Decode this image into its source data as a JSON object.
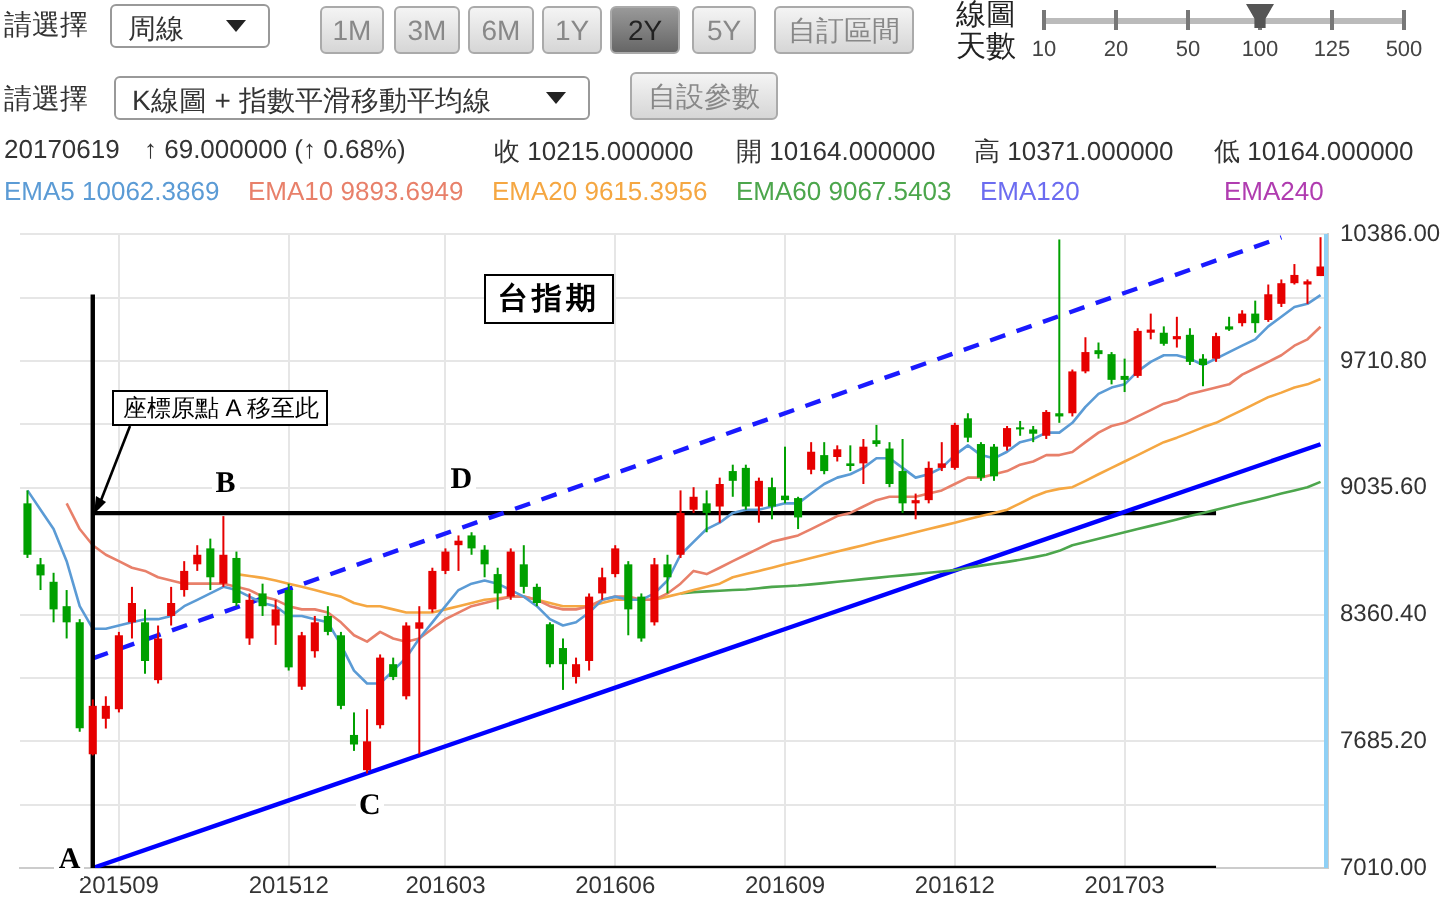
{
  "chart_data": {
    "type": "candlestick",
    "title": "台指期",
    "x": [
      "2015-07-27",
      "2015-08-03",
      "2015-08-10",
      "2015-08-17",
      "2015-08-24",
      "2015-08-31",
      "2015-09-07",
      "2015-09-14",
      "2015-09-21",
      "2015-09-28",
      "2015-10-05",
      "2015-10-12",
      "2015-10-19",
      "2015-10-26",
      "2015-11-02",
      "2015-11-09",
      "2015-11-16",
      "2015-11-23",
      "2015-11-30",
      "2015-12-07",
      "2015-12-14",
      "2015-12-21",
      "2015-12-28",
      "2016-01-04",
      "2016-01-11",
      "2016-01-18",
      "2016-01-25",
      "2016-02-01",
      "2016-02-08",
      "2016-02-15",
      "2016-02-22",
      "2016-02-29",
      "2016-03-07",
      "2016-03-14",
      "2016-03-21",
      "2016-03-28",
      "2016-04-04",
      "2016-04-11",
      "2016-04-18",
      "2016-04-25",
      "2016-05-02",
      "2016-05-09",
      "2016-05-16",
      "2016-05-23",
      "2016-05-30",
      "2016-06-06",
      "2016-06-13",
      "2016-06-20",
      "2016-06-27",
      "2016-07-04",
      "2016-07-11",
      "2016-07-18",
      "2016-07-25",
      "2016-08-01",
      "2016-08-08",
      "2016-08-15",
      "2016-08-22",
      "2016-08-29",
      "2016-09-05",
      "2016-09-12",
      "2016-09-19",
      "2016-09-26",
      "2016-10-03",
      "2016-10-10",
      "2016-10-17",
      "2016-10-24",
      "2016-10-31",
      "2016-11-07",
      "2016-11-14",
      "2016-11-21",
      "2016-11-28",
      "2016-12-05",
      "2016-12-12",
      "2016-12-19",
      "2016-12-26",
      "2017-01-02",
      "2017-01-09",
      "2017-01-16",
      "2017-01-23",
      "2017-01-30",
      "2017-02-06",
      "2017-02-13",
      "2017-02-20",
      "2017-02-27",
      "2017-03-06",
      "2017-03-13",
      "2017-03-20",
      "2017-03-27",
      "2017-04-03",
      "2017-04-10",
      "2017-04-17",
      "2017-04-24",
      "2017-05-01",
      "2017-05-08",
      "2017-05-15",
      "2017-05-22",
      "2017-05-29",
      "2017-06-05",
      "2017-06-12",
      "2017-06-19"
    ],
    "ohlc": [
      [
        8953,
        9022,
        8662,
        8679
      ],
      [
        8628,
        8662,
        8491,
        8569
      ],
      [
        8535,
        8583,
        8319,
        8388
      ],
      [
        8405,
        8491,
        8233,
        8319
      ],
      [
        8319,
        8336,
        7736,
        7754
      ],
      [
        7616,
        7908,
        7610,
        7874
      ],
      [
        7805,
        7925,
        7753,
        7874
      ],
      [
        7856,
        8268,
        7839,
        8250
      ],
      [
        8319,
        8508,
        8233,
        8422
      ],
      [
        8319,
        8388,
        8045,
        8113
      ],
      [
        8011,
        8302,
        7993,
        8233
      ],
      [
        8353,
        8508,
        8302,
        8422
      ],
      [
        8491,
        8645,
        8456,
        8593
      ],
      [
        8628,
        8730,
        8593,
        8679
      ],
      [
        8713,
        8765,
        8491,
        8559
      ],
      [
        8525,
        8885,
        8508,
        8679
      ],
      [
        8662,
        8696,
        8405,
        8422
      ],
      [
        8233,
        8473,
        8199,
        8439
      ],
      [
        8473,
        8525,
        8353,
        8405
      ],
      [
        8302,
        8439,
        8199,
        8388
      ],
      [
        8491,
        8525,
        8062,
        8079
      ],
      [
        7976,
        8268,
        7959,
        8250
      ],
      [
        8165,
        8353,
        8131,
        8319
      ],
      [
        8353,
        8405,
        8250,
        8268
      ],
      [
        8250,
        8268,
        7856,
        7874
      ],
      [
        7719,
        7839,
        7634,
        7668
      ],
      [
        7531,
        7856,
        7514,
        7685
      ],
      [
        7771,
        8148,
        7753,
        8131
      ],
      [
        8096,
        8131,
        8011,
        8028
      ],
      [
        7925,
        8319,
        7908,
        8302
      ],
      [
        8285,
        8405,
        7616,
        8319
      ],
      [
        8388,
        8610,
        8371,
        8593
      ],
      [
        8593,
        8713,
        8576,
        8696
      ],
      [
        8730,
        8782,
        8593,
        8754
      ],
      [
        8782,
        8799,
        8679,
        8713
      ],
      [
        8706,
        8730,
        8559,
        8628
      ],
      [
        8576,
        8610,
        8388,
        8473
      ],
      [
        8456,
        8713,
        8439,
        8696
      ],
      [
        8628,
        8730,
        8473,
        8508
      ],
      [
        8508,
        8525,
        8405,
        8422
      ],
      [
        8309,
        8319,
        8079,
        8096
      ],
      [
        8182,
        8233,
        7959,
        8096
      ],
      [
        8028,
        8131,
        7993,
        8096
      ],
      [
        8113,
        8473,
        8062,
        8456
      ],
      [
        8473,
        8610,
        8439,
        8559
      ],
      [
        8576,
        8730,
        8559,
        8713
      ],
      [
        8628,
        8645,
        8250,
        8388
      ],
      [
        8456,
        8473,
        8216,
        8233
      ],
      [
        8319,
        8662,
        8302,
        8628
      ],
      [
        8628,
        8679,
        8473,
        8559
      ],
      [
        8679,
        9022,
        8662,
        8902
      ],
      [
        8919,
        9039,
        8902,
        8988
      ],
      [
        8953,
        9022,
        8799,
        8902
      ],
      [
        8936,
        9090,
        8850,
        9056
      ],
      [
        9125,
        9159,
        8988,
        9073
      ],
      [
        9142,
        9159,
        8919,
        8936
      ],
      [
        8936,
        9090,
        8850,
        9073
      ],
      [
        9039,
        9090,
        8868,
        8936
      ],
      [
        8994,
        9255,
        8953,
        8970
      ],
      [
        8981,
        8988,
        8816,
        8878
      ],
      [
        9132,
        9279,
        9108,
        9228
      ],
      [
        9210,
        9279,
        9108,
        9125
      ],
      [
        9200,
        9262,
        9176,
        9241
      ],
      [
        9166,
        9262,
        9125,
        9152
      ],
      [
        9166,
        9296,
        9056,
        9255
      ],
      [
        9289,
        9371,
        9255,
        9269
      ],
      [
        9245,
        9279,
        9039,
        9056
      ],
      [
        9125,
        9296,
        8902,
        8953
      ],
      [
        8953,
        9005,
        8868,
        8970
      ],
      [
        8970,
        9176,
        8953,
        9142
      ],
      [
        9142,
        9279,
        9125,
        9166
      ],
      [
        9142,
        9382,
        9132,
        9371
      ],
      [
        9406,
        9433,
        9279,
        9303
      ],
      [
        9269,
        9279,
        9073,
        9090
      ],
      [
        9255,
        9269,
        9073,
        9097
      ],
      [
        9255,
        9365,
        9234,
        9354
      ],
      [
        9358,
        9392,
        9313,
        9347
      ],
      [
        9347,
        9365,
        9279,
        9324
      ],
      [
        9313,
        9450,
        9296,
        9440
      ],
      [
        9433,
        10359,
        9382,
        9416
      ],
      [
        9433,
        9666,
        9416,
        9656
      ],
      [
        9656,
        9838,
        9646,
        9759
      ],
      [
        9769,
        9810,
        9724,
        9748
      ],
      [
        9748,
        9759,
        9587,
        9611
      ],
      [
        9632,
        9724,
        9546,
        9611
      ],
      [
        9632,
        9886,
        9622,
        9872
      ],
      [
        9862,
        9964,
        9827,
        9879
      ],
      [
        9862,
        9896,
        9793,
        9803
      ],
      [
        9827,
        9947,
        9783,
        9844
      ],
      [
        9851,
        9886,
        9690,
        9707
      ],
      [
        9724,
        9748,
        9577,
        9690
      ],
      [
        9724,
        9862,
        9707,
        9844
      ],
      [
        9896,
        9947,
        9872,
        9879
      ],
      [
        9913,
        9982,
        9896,
        9964
      ],
      [
        9964,
        10033,
        9862,
        9913
      ],
      [
        9930,
        10119,
        9920,
        10067
      ],
      [
        10016,
        10146,
        9999,
        10126
      ],
      [
        10126,
        10228,
        10119,
        10170
      ],
      [
        10119,
        10146,
        10016,
        10136
      ],
      [
        10164,
        10371,
        10164,
        10215
      ]
    ],
    "colors": [
      "#00a000",
      "#00a000",
      "#00a000",
      "#00a000",
      "#00a000",
      "#e60000",
      "#e60000",
      "#e60000",
      "#e60000",
      "#00a000",
      "#e60000",
      "#e60000",
      "#e60000",
      "#e60000",
      "#00a000",
      "#e60000",
      "#00a000",
      "#e60000",
      "#00a000",
      "#e60000",
      "#00a000",
      "#e60000",
      "#e60000",
      "#00a000",
      "#00a000",
      "#00a000",
      "#e60000",
      "#e60000",
      "#00a000",
      "#e60000",
      "#e60000",
      "#e60000",
      "#e60000",
      "#e60000",
      "#00a000",
      "#00a000",
      "#00a000",
      "#e60000",
      "#00a000",
      "#00a000",
      "#00a000",
      "#00a000",
      "#e60000",
      "#e60000",
      "#e60000",
      "#e60000",
      "#00a000",
      "#00a000",
      "#e60000",
      "#00a000",
      "#e60000",
      "#e60000",
      "#00a000",
      "#e60000",
      "#00a000",
      "#00a000",
      "#e60000",
      "#00a000",
      "#00a000",
      "#00a000",
      "#e60000",
      "#00a000",
      "#e60000",
      "#00a000",
      "#e60000",
      "#00a000",
      "#00a000",
      "#00a000",
      "#e60000",
      "#e60000",
      "#e60000",
      "#e60000",
      "#00a000",
      "#00a000",
      "#00a000",
      "#e60000",
      "#00a000",
      "#00a000",
      "#e60000",
      "#00a000",
      "#e60000",
      "#e60000",
      "#00a000",
      "#00a000",
      "#00a000",
      "#e60000",
      "#e60000",
      "#00a000",
      "#e60000",
      "#00a000",
      "#00a000",
      "#e60000",
      "#00a000",
      "#e60000",
      "#00a000",
      "#e60000",
      "#e60000",
      "#e60000",
      "#e60000",
      "#e60000"
    ],
    "series": [
      {
        "type": "line",
        "name": "EMA5 10062.3869",
        "color": "#5b9bd5",
        "values": [
          9022,
          8919,
          8816,
          8645,
          8405,
          8285,
          8285,
          8302,
          8319,
          8336,
          8336,
          8353,
          8405,
          8439,
          8473,
          8508,
          8491,
          8456,
          8422,
          8405,
          8353,
          8353,
          8336,
          8319,
          8199,
          8062,
          7993,
          7993,
          8062,
          8131,
          8233,
          8319,
          8405,
          8491,
          8525,
          8542,
          8525,
          8491,
          8456,
          8405,
          8336,
          8302,
          8319,
          8371,
          8439,
          8456,
          8439,
          8439,
          8473,
          8542,
          8679,
          8748,
          8816,
          8850,
          8902,
          8919,
          8919,
          8936,
          8953,
          8953,
          9005,
          9056,
          9090,
          9108,
          9142,
          9193,
          9193,
          9142,
          9090,
          9108,
          9142,
          9210,
          9262,
          9210,
          9193,
          9228,
          9279,
          9296,
          9330,
          9330,
          9382,
          9467,
          9536,
          9570,
          9587,
          9656,
          9707,
          9742,
          9742,
          9724,
          9690,
          9724,
          9759,
          9793,
          9827,
          9896,
          9947,
          9999,
          10016,
          10062.3869
        ]
      },
      {
        "type": "line",
        "name": "EMA10 9893.6949",
        "color": "#e8806a",
        "values": [
          null,
          null,
          null,
          8953,
          8816,
          8730,
          8679,
          8645,
          8610,
          8593,
          8559,
          8542,
          8525,
          8525,
          8525,
          8525,
          8508,
          8491,
          8456,
          8439,
          8405,
          8388,
          8388,
          8371,
          8319,
          8250,
          8216,
          8268,
          8233,
          8216,
          8233,
          8285,
          8336,
          8371,
          8405,
          8422,
          8439,
          8456,
          8456,
          8439,
          8405,
          8388,
          8388,
          8405,
          8439,
          8456,
          8456,
          8439,
          8439,
          8473,
          8525,
          8593,
          8576,
          8610,
          8645,
          8679,
          8713,
          8748,
          8765,
          8782,
          8816,
          8850,
          8885,
          8902,
          8936,
          8970,
          8988,
          8988,
          8988,
          9005,
          9022,
          9056,
          9090,
          9090,
          9108,
          9125,
          9159,
          9176,
          9210,
          9210,
          9227,
          9279,
          9330,
          9365,
          9382,
          9416,
          9450,
          9484,
          9502,
          9536,
          9553,
          9570,
          9587,
          9639,
          9673,
          9707,
          9742,
          9793,
          9827,
          9893.6949
        ]
      },
      {
        "type": "line",
        "name": "EMA20 9615.3956",
        "color": "#f5a742",
        "values": [
          null,
          null,
          null,
          null,
          null,
          null,
          null,
          null,
          null,
          null,
          null,
          null,
          null,
          null,
          null,
          null,
          8576,
          8566,
          8556,
          8542,
          8525,
          8508,
          8491,
          8473,
          8456,
          8422,
          8405,
          8405,
          8388,
          8371,
          8371,
          8371,
          8388,
          8405,
          8422,
          8439,
          8446,
          8456,
          8456,
          8439,
          8422,
          8405,
          8405,
          8405,
          8422,
          8439,
          8439,
          8439,
          8439,
          8456,
          8473,
          8491,
          8508,
          8525,
          8559,
          8576,
          8593,
          8610,
          8628,
          8645,
          8662,
          8679,
          8696,
          8713,
          8730,
          8748,
          8765,
          8782,
          8799,
          8816,
          8833,
          8850,
          8868,
          8885,
          8902,
          8919,
          8953,
          8988,
          9015,
          9030,
          9039,
          9073,
          9108,
          9142,
          9176,
          9210,
          9245,
          9279,
          9303,
          9330,
          9358,
          9382,
          9416,
          9450,
          9484,
          9519,
          9543,
          9570,
          9587,
          9615.3956
        ]
      },
      {
        "type": "line",
        "name": "EMA60 9067.5403",
        "color": "#4ca64c",
        "values": [
          null,
          null,
          null,
          null,
          null,
          null,
          null,
          null,
          null,
          null,
          null,
          null,
          null,
          null,
          null,
          null,
          null,
          null,
          null,
          null,
          null,
          null,
          null,
          null,
          null,
          null,
          null,
          null,
          null,
          null,
          null,
          null,
          null,
          null,
          null,
          null,
          null,
          null,
          null,
          null,
          null,
          null,
          null,
          null,
          null,
          null,
          null,
          null,
          null,
          null,
          8473,
          8480,
          8484,
          8487,
          8491,
          8494,
          8501,
          8508,
          8511,
          8515,
          8521,
          8528,
          8535,
          8542,
          8549,
          8556,
          8563,
          8569,
          8576,
          8583,
          8590,
          8597,
          8610,
          8621,
          8631,
          8641,
          8652,
          8665,
          8679,
          8700,
          8730,
          8747,
          8764,
          8782,
          8799,
          8816,
          8833,
          8850,
          8867,
          8885,
          8902,
          8919,
          8936,
          8953,
          8970,
          8987,
          9005,
          9022,
          9039,
          9067.5403
        ]
      },
      {
        "type": "line",
        "name": "EMA120",
        "color": "#6c6cf0",
        "values": [
          null,
          null,
          null,
          null,
          null,
          null,
          null,
          null,
          null,
          null,
          null,
          null,
          null,
          null,
          null,
          null,
          null,
          null,
          null,
          null,
          null,
          null,
          null,
          null,
          null,
          null,
          null,
          null,
          null,
          null,
          null,
          null,
          null,
          null,
          null,
          null,
          null,
          null,
          null,
          null,
          null,
          null,
          null,
          null,
          null,
          null,
          null,
          null,
          null,
          null,
          null,
          null,
          null,
          null,
          null,
          null,
          null,
          null,
          null,
          null,
          null,
          null,
          null,
          null,
          null,
          null,
          null,
          null,
          null,
          null,
          null,
          null,
          null,
          null,
          null,
          null,
          null,
          null,
          null,
          null,
          null,
          null,
          null,
          null,
          null,
          null,
          null,
          null,
          null,
          null,
          null,
          null,
          null,
          null,
          null,
          null,
          null,
          null,
          null,
          null
        ]
      },
      {
        "type": "line",
        "name": "EMA240",
        "color": "#b03cb0",
        "values": [
          null,
          null,
          null,
          null,
          null,
          null,
          null,
          null,
          null,
          null,
          null,
          null,
          null,
          null,
          null,
          null,
          null,
          null,
          null,
          null,
          null,
          null,
          null,
          null,
          null,
          null,
          null,
          null,
          null,
          null,
          null,
          null,
          null,
          null,
          null,
          null,
          null,
          null,
          null,
          null,
          null,
          null,
          null,
          null,
          null,
          null,
          null,
          null,
          null,
          null,
          null,
          null,
          null,
          null,
          null,
          null,
          null,
          null,
          null,
          null,
          null,
          null,
          null,
          null,
          null,
          null,
          null,
          null,
          null,
          null,
          null,
          null,
          null,
          null,
          null,
          null,
          null,
          null,
          null,
          null,
          null,
          null,
          null,
          null,
          null,
          null,
          null,
          null,
          null,
          null,
          null,
          null,
          null,
          null,
          null,
          null,
          null,
          null,
          null,
          null
        ]
      },
      {
        "type": "line",
        "color": "#0000ff",
        "x": [
          "2015-08-31",
          "2017-06-19"
        ],
        "values": [
          7010,
          9268
        ]
      },
      {
        "type": "line",
        "color": "#1a1aff",
        "line_style": "dashed",
        "x": [
          "2015-08-31",
          "2017-05-29"
        ],
        "values": [
          8127,
          10370
        ]
      },
      {
        "type": "line",
        "color": "#000000",
        "x": [
          "2015-08-31",
          "2017-04-24"
        ],
        "values": [
          8901,
          8901
        ]
      },
      {
        "type": "line",
        "color": "#000000",
        "x": [
          "2015-08-31",
          "2017-04-24"
        ],
        "values": [
          7010,
          7010
        ]
      }
    ],
    "ref_lines": [
      {
        "axis": "x",
        "value": "2015-08-31",
        "color": "#000000"
      }
    ],
    "xlim": [
      "2015-07-23",
      "2017-06-23"
    ],
    "xticks": [
      {
        "value": "2015-09-14",
        "label": "201509"
      },
      {
        "value": "2015-12-14",
        "label": "201512"
      },
      {
        "value": "2016-03-07",
        "label": "201603"
      },
      {
        "value": "2016-06-06",
        "label": "201606"
      },
      {
        "value": "2016-09-05",
        "label": "201609"
      },
      {
        "value": "2016-12-05",
        "label": "201612"
      },
      {
        "value": "2017-03-06",
        "label": "201703"
      }
    ],
    "ylim": [
      7010,
      10386
    ],
    "yticks": [
      {
        "value": 7010,
        "label": "7010.00"
      },
      {
        "value": 7347.6,
        "label": null
      },
      {
        "value": 7685.2,
        "label": "7685.20"
      },
      {
        "value": 8022.8,
        "label": null
      },
      {
        "value": 8360.4,
        "label": "8360.40"
      },
      {
        "value": 8698,
        "label": null
      },
      {
        "value": 9035.6,
        "label": "9035.60"
      },
      {
        "value": 9373.2,
        "label": null
      },
      {
        "value": 9710.8,
        "label": "9710.80"
      },
      {
        "value": 10048.4,
        "label": null
      },
      {
        "value": 10386,
        "label": "10386.00"
      }
    ],
    "grid": true,
    "legend": "top",
    "annotations": [
      "請選擇",
      "周線",
      "1M",
      "3M",
      "6M",
      "1Y",
      "2Y",
      "5Y",
      "自訂區間",
      "線圖天數",
      "10",
      "20",
      "50",
      "100",
      "125",
      "500",
      "請選擇",
      "K線圖 + 指數平滑移動平均線",
      "自設參數",
      "20170619",
      "↑ 69.000000 (↑ 0.68%)",
      "收 10215.000000",
      "開 10164.000000",
      "高 10371.000000",
      "低 10164.000000",
      {
        "text": "座標原點 A 移至此",
        "x": "2015-08-31",
        "y": 8901
      },
      {
        "text": "A",
        "x": "2015-08-17",
        "y": 7046
      },
      {
        "text": "B",
        "x": "2015-11-09",
        "y": 9042
      },
      {
        "text": "C",
        "x": "2016-01-25",
        "y": 7325
      },
      {
        "text": "D",
        "x": "2016-03-14",
        "y": 9063
      }
    ]
  }
}
